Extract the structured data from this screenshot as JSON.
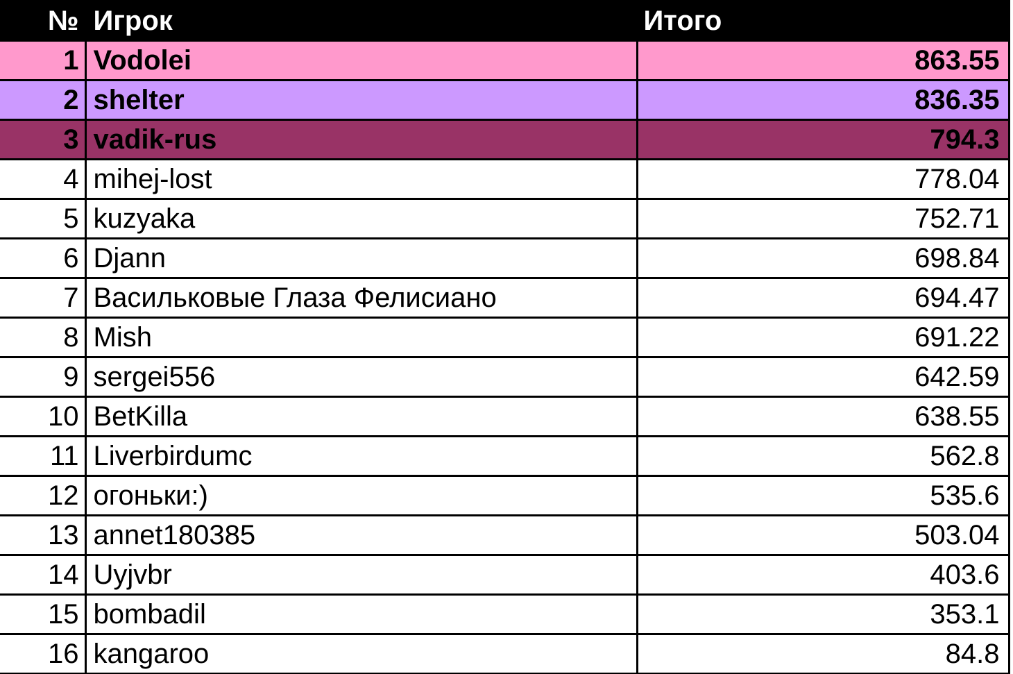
{
  "header": {
    "rank": "№",
    "player": "Игрок",
    "total": "Итого"
  },
  "rows": [
    {
      "rank": "1",
      "player": "Vodolei",
      "total": "863.55"
    },
    {
      "rank": "2",
      "player": "shelter",
      "total": "836.35"
    },
    {
      "rank": "3",
      "player": "vadik-rus",
      "total": "794.3"
    },
    {
      "rank": "4",
      "player": "mihej-lost",
      "total": "778.04"
    },
    {
      "rank": "5",
      "player": "kuzyaka",
      "total": "752.71"
    },
    {
      "rank": "6",
      "player": "Djann",
      "total": "698.84"
    },
    {
      "rank": "7",
      "player": "Васильковые Глаза Фелисиано",
      "total": "694.47"
    },
    {
      "rank": "8",
      "player": "Mish",
      "total": "691.22"
    },
    {
      "rank": "9",
      "player": "sergei556",
      "total": "642.59"
    },
    {
      "rank": "10",
      "player": "BetKilla",
      "total": "638.55"
    },
    {
      "rank": "11",
      "player": "Liverbirdumc",
      "total": "562.8"
    },
    {
      "rank": "12",
      "player": "огоньки:)",
      "total": "535.6"
    },
    {
      "rank": "13",
      "player": "annet180385",
      "total": "503.04"
    },
    {
      "rank": "14",
      "player": "Uyjvbr",
      "total": "403.6"
    },
    {
      "rank": "15",
      "player": "bombadil",
      "total": "353.1"
    },
    {
      "rank": "16",
      "player": "kangaroo",
      "total": "84.8"
    }
  ],
  "colors": {
    "header_bg": "#000000",
    "header_text": "#FFFFFF",
    "rank1_bg": "#FF99CC",
    "rank2_bg": "#CC99FF",
    "rank3_bg": "#993366",
    "row_bg": "#FFFFFF",
    "border": "#000000",
    "text": "#000000"
  }
}
